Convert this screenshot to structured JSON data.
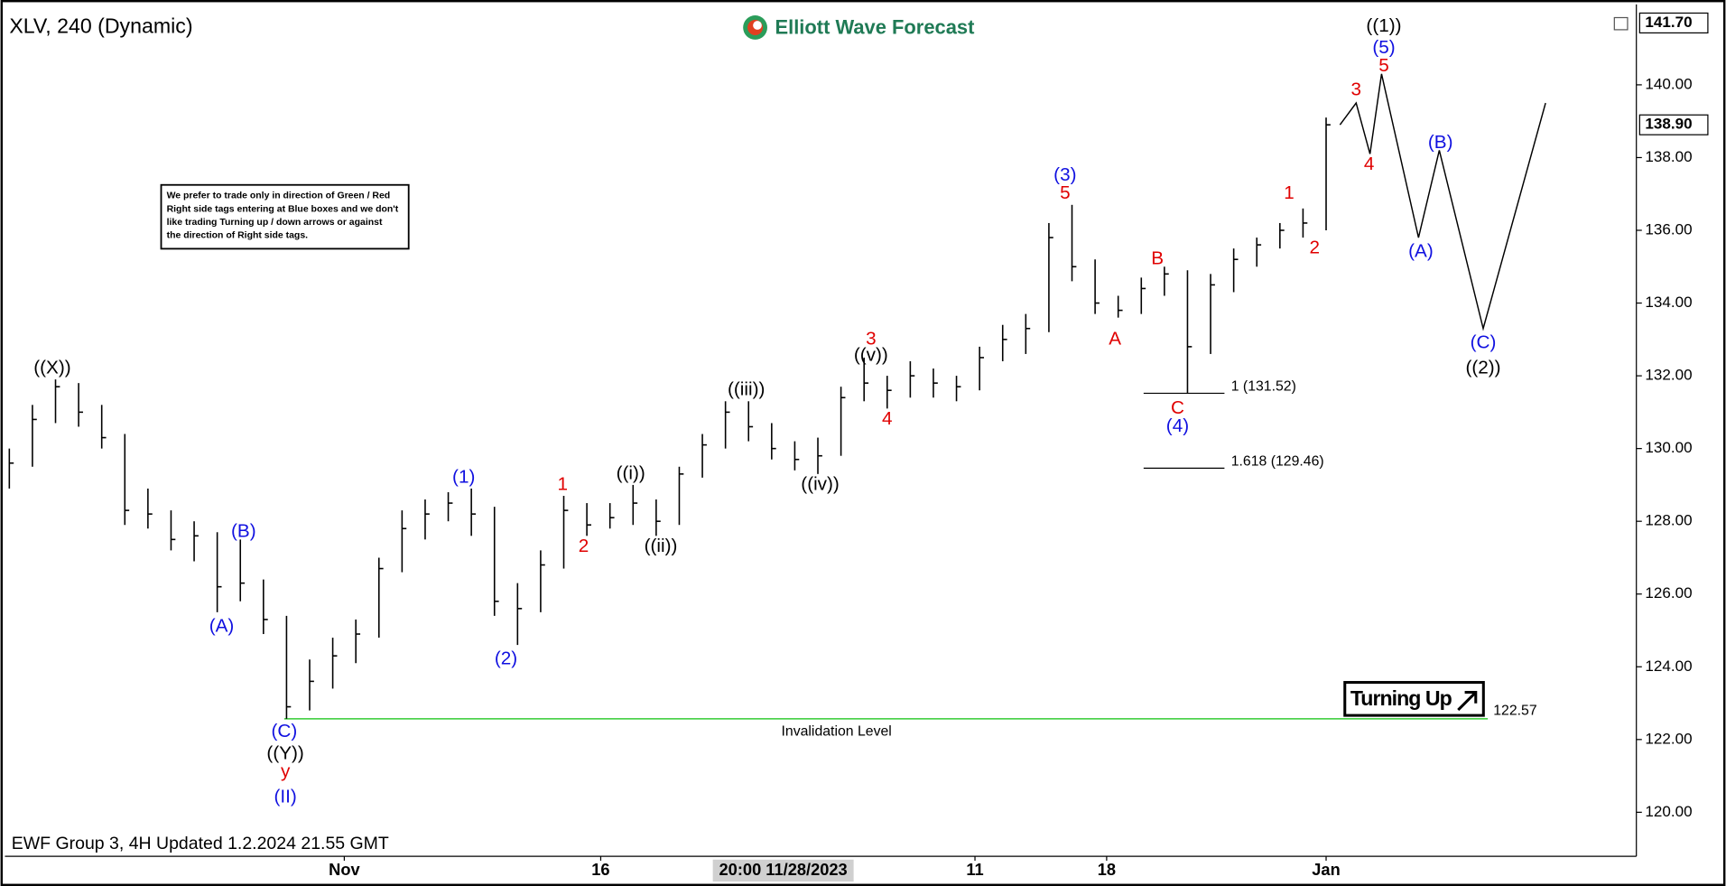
{
  "title": "XLV, 240 (Dynamic)",
  "logo": "Elliott Wave Forecast",
  "footer": "EWF Group 3, 4H Updated 1.2.2024 21.55 GMT",
  "note": [
    "We prefer to trade only in direction of Green / Red",
    "Right side tags entering at Blue boxes and we don't",
    "like trading Turning up / down arrows or against",
    "the direction of Right side tags."
  ],
  "badge": "Turning Up",
  "chart_data": {
    "type": "hlc",
    "color": "#000000",
    "x": [
      0,
      1,
      2,
      3,
      4,
      5,
      6,
      7,
      8,
      9,
      10,
      11,
      12,
      13,
      14,
      15,
      16,
      17,
      18,
      19,
      20,
      21,
      22,
      23,
      24,
      25,
      26,
      27,
      28,
      29,
      30,
      31,
      32,
      33,
      34,
      35,
      36,
      37,
      38,
      39,
      40,
      41,
      42,
      43,
      44,
      45,
      46,
      47,
      48,
      49,
      50,
      51,
      52,
      53,
      54,
      55,
      56,
      57
    ],
    "high": [
      130.0,
      131.2,
      131.9,
      131.8,
      131.2,
      130.4,
      128.9,
      128.3,
      128.0,
      127.7,
      127.5,
      126.4,
      125.4,
      124.2,
      124.8,
      125.3,
      127.0,
      128.3,
      128.6,
      128.8,
      128.9,
      128.4,
      126.3,
      127.2,
      128.7,
      128.5,
      128.5,
      129.0,
      128.6,
      129.5,
      130.4,
      131.3,
      131.3,
      130.7,
      130.2,
      130.3,
      131.7,
      132.5,
      132.0,
      132.4,
      132.2,
      132.0,
      132.8,
      133.4,
      133.7,
      136.2,
      136.7,
      135.2,
      134.2,
      134.7,
      135.0,
      134.9,
      134.8,
      135.5,
      135.8,
      136.2,
      136.6,
      139.1
    ],
    "low": [
      128.9,
      129.5,
      130.7,
      130.6,
      130.0,
      127.9,
      127.8,
      127.2,
      126.9,
      125.5,
      125.8,
      124.9,
      122.57,
      122.8,
      123.4,
      124.1,
      124.8,
      126.6,
      127.5,
      128.0,
      127.6,
      125.4,
      124.6,
      125.5,
      126.7,
      127.6,
      127.8,
      127.9,
      127.6,
      127.9,
      129.2,
      130.0,
      130.2,
      129.7,
      129.4,
      129.3,
      129.8,
      131.3,
      131.1,
      131.4,
      131.4,
      131.3,
      131.6,
      132.4,
      132.6,
      133.2,
      134.6,
      133.7,
      133.6,
      133.7,
      134.2,
      131.52,
      132.6,
      134.3,
      135.0,
      135.5,
      135.8,
      136.0
    ],
    "close": [
      129.6,
      130.8,
      131.7,
      131.0,
      130.3,
      128.3,
      128.2,
      127.5,
      127.6,
      126.2,
      126.3,
      125.3,
      122.9,
      123.6,
      124.3,
      124.9,
      126.7,
      127.8,
      128.2,
      128.5,
      128.2,
      125.8,
      125.6,
      126.8,
      128.3,
      127.9,
      128.1,
      128.5,
      128.0,
      129.3,
      130.1,
      131.0,
      130.6,
      130.0,
      129.7,
      129.8,
      131.4,
      131.8,
      131.6,
      132.0,
      131.8,
      131.7,
      132.5,
      133.0,
      133.3,
      135.8,
      135.0,
      134.0,
      133.8,
      134.4,
      134.8,
      132.8,
      134.5,
      135.2,
      135.6,
      136.0,
      136.2,
      138.9
    ],
    "xlim": [
      -0.19,
      70.43
    ],
    "ylim": [
      118.79,
      142.09
    ],
    "yticks": [
      {
        "value": 120,
        "label": "120.00"
      },
      {
        "value": 122,
        "label": "122.00"
      },
      {
        "value": 124,
        "label": "124.00"
      },
      {
        "value": 126,
        "label": "126.00"
      },
      {
        "value": 128,
        "label": "128.00"
      },
      {
        "value": 130,
        "label": "130.00"
      },
      {
        "value": 132,
        "label": "132.00"
      },
      {
        "value": 134,
        "label": "134.00"
      },
      {
        "value": 136,
        "label": "136.00"
      },
      {
        "value": 138,
        "label": "138.00"
      },
      {
        "value": 140,
        "label": "140.00"
      }
    ],
    "xticks": [
      {
        "value": 14.5,
        "label": "Nov"
      },
      {
        "value": 25.6,
        "label": "16"
      },
      {
        "value": 41.8,
        "label": "11"
      },
      {
        "value": 47.5,
        "label": "18"
      },
      {
        "value": 57,
        "label": "Jan"
      }
    ],
    "crosshair": {
      "value": 33.5,
      "label": "20:00 11/28/2023"
    },
    "price_tags": [
      {
        "value": 141.7,
        "label": "141.70"
      },
      {
        "value": 138.9,
        "label": "138.90"
      }
    ],
    "projection": {
      "x": [
        57.6,
        58.3,
        58.9,
        59.4,
        61.0,
        61.9,
        63.8,
        66.5
      ],
      "y": [
        138.9,
        139.5,
        138.1,
        140.3,
        135.8,
        138.2,
        133.3,
        139.5
      ]
    },
    "fib_levels": [
      {
        "value": 131.52,
        "label": "1 (131.52)",
        "x": [
          49.1,
          52.6
        ]
      },
      {
        "value": 129.46,
        "label": "1.618 (129.46)",
        "x": [
          49.1,
          52.6
        ]
      }
    ],
    "invalidation": {
      "value": 122.57,
      "label": "Invalidation Level",
      "x": [
        11.9,
        64.0
      ],
      "color": "#33cc33"
    },
    "annotations": [
      {
        "text": "((X))",
        "x": 1.86,
        "y": 132.2,
        "color": "#000000"
      },
      {
        "text": "(A)",
        "x": 9.19,
        "y": 125.1,
        "color": "#1010e0"
      },
      {
        "text": "(B)",
        "x": 10.14,
        "y": 127.7,
        "color": "#1010e0"
      },
      {
        "text": "(C)",
        "x": 11.9,
        "y": 122.2,
        "color": "#1010e0"
      },
      {
        "text": "((Y))",
        "x": 11.95,
        "y": 121.6,
        "color": "#000000"
      },
      {
        "text": "y",
        "x": 11.95,
        "y": 121.1,
        "color": "#e00000"
      },
      {
        "text": "(II)",
        "x": 11.95,
        "y": 120.4,
        "color": "#1010e0"
      },
      {
        "text": "(1)",
        "x": 19.67,
        "y": 129.2,
        "color": "#1010e0"
      },
      {
        "text": "(2)",
        "x": 21.5,
        "y": 124.2,
        "color": "#1010e0"
      },
      {
        "text": "1",
        "x": 23.95,
        "y": 129.0,
        "color": "#e00000"
      },
      {
        "text": "2",
        "x": 24.86,
        "y": 127.3,
        "color": "#e00000"
      },
      {
        "text": "((i))",
        "x": 26.9,
        "y": 129.3,
        "color": "#000000"
      },
      {
        "text": "((ii))",
        "x": 28.2,
        "y": 127.3,
        "color": "#000000"
      },
      {
        "text": "((iii))",
        "x": 31.9,
        "y": 131.6,
        "color": "#000000"
      },
      {
        "text": "((iv))",
        "x": 35.1,
        "y": 129.0,
        "color": "#000000"
      },
      {
        "text": "3",
        "x": 37.3,
        "y": 133.0,
        "color": "#e00000"
      },
      {
        "text": "((v))",
        "x": 37.3,
        "y": 132.55,
        "color": "#000000"
      },
      {
        "text": "4",
        "x": 38.0,
        "y": 130.8,
        "color": "#e00000"
      },
      {
        "text": "(3)",
        "x": 45.7,
        "y": 137.5,
        "color": "#1010e0"
      },
      {
        "text": "5",
        "x": 45.7,
        "y": 137.0,
        "color": "#e00000"
      },
      {
        "text": "A",
        "x": 47.86,
        "y": 133.0,
        "color": "#e00000"
      },
      {
        "text": "B",
        "x": 49.7,
        "y": 135.2,
        "color": "#e00000"
      },
      {
        "text": "C",
        "x": 50.57,
        "y": 131.1,
        "color": "#e00000"
      },
      {
        "text": "(4)",
        "x": 50.57,
        "y": 130.6,
        "color": "#1010e0"
      },
      {
        "text": "1",
        "x": 55.4,
        "y": 137.0,
        "color": "#e00000"
      },
      {
        "text": "2",
        "x": 56.5,
        "y": 135.5,
        "color": "#e00000"
      },
      {
        "text": "3",
        "x": 58.3,
        "y": 139.85,
        "color": "#e00000"
      },
      {
        "text": "4",
        "x": 58.86,
        "y": 137.8,
        "color": "#e00000"
      },
      {
        "text": "((1))",
        "x": 59.5,
        "y": 141.6,
        "color": "#000000"
      },
      {
        "text": "(5)",
        "x": 59.5,
        "y": 141.0,
        "color": "#1010e0"
      },
      {
        "text": "5",
        "x": 59.5,
        "y": 140.5,
        "color": "#e00000"
      },
      {
        "text": "(A)",
        "x": 61.1,
        "y": 135.4,
        "color": "#1010e0"
      },
      {
        "text": "(B)",
        "x": 61.95,
        "y": 138.4,
        "color": "#1010e0"
      },
      {
        "text": "(C)",
        "x": 63.8,
        "y": 132.9,
        "color": "#1010e0"
      },
      {
        "text": "((2))",
        "x": 63.8,
        "y": 132.2,
        "color": "#000000"
      }
    ]
  }
}
